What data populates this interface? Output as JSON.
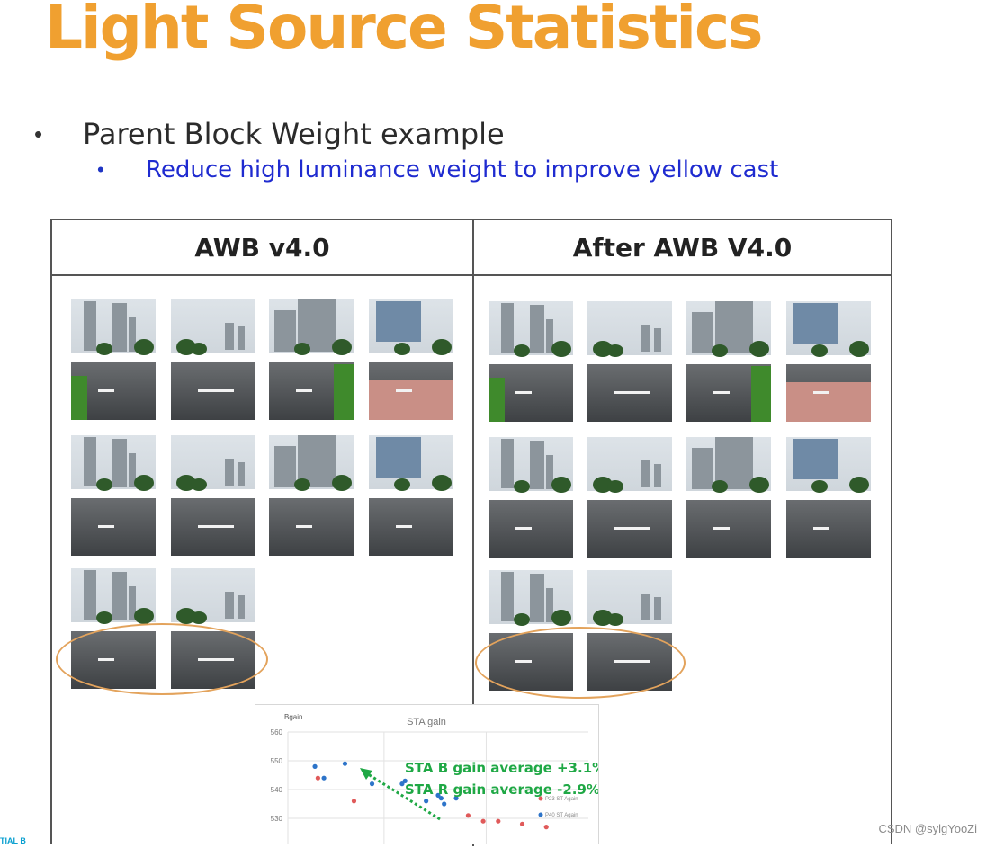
{
  "slide": {
    "title": "Light Source Statistics",
    "bullet1": "Parent Block Weight example",
    "bullet2": "Reduce high luminance weight to improve yellow cast",
    "bullet1_marker": "•",
    "bullet2_marker": "•"
  },
  "table": {
    "left_header": "AWB v4.0",
    "right_header": "After AWB V4.0"
  },
  "chart_data": {
    "type": "scatter",
    "title": "STA gain",
    "ylabel": "Bgain",
    "yticks": [
      "560",
      "550",
      "540",
      "530"
    ],
    "ylim": [
      520,
      560
    ],
    "annotations": [
      "STA B gain average +3.1%",
      "STA R gain average -2.9%"
    ],
    "legend": [
      "P23 ST Again",
      "P40 ST Again"
    ],
    "series": [
      {
        "name": "P23 ST Again",
        "color": "#e05a5a",
        "points": [
          [
            1,
            544
          ],
          [
            2.2,
            536
          ],
          [
            6,
            531
          ],
          [
            6.5,
            529
          ],
          [
            7,
            529
          ],
          [
            7.8,
            528
          ],
          [
            8.6,
            527
          ]
        ]
      },
      {
        "name": "P40 ST Again",
        "color": "#2d74c9",
        "points": [
          [
            0.9,
            548
          ],
          [
            1.2,
            544
          ],
          [
            1.9,
            549
          ],
          [
            2.8,
            542
          ],
          [
            3.8,
            542
          ],
          [
            3.9,
            543
          ],
          [
            4.6,
            536
          ],
          [
            5,
            538
          ],
          [
            5.1,
            537
          ],
          [
            5.2,
            535
          ],
          [
            5.6,
            537
          ]
        ]
      }
    ],
    "annotation_color": "#1fa845"
  },
  "footer": {
    "watermark": "CSDN @sylgYooZi",
    "corner": "TIAL B"
  }
}
